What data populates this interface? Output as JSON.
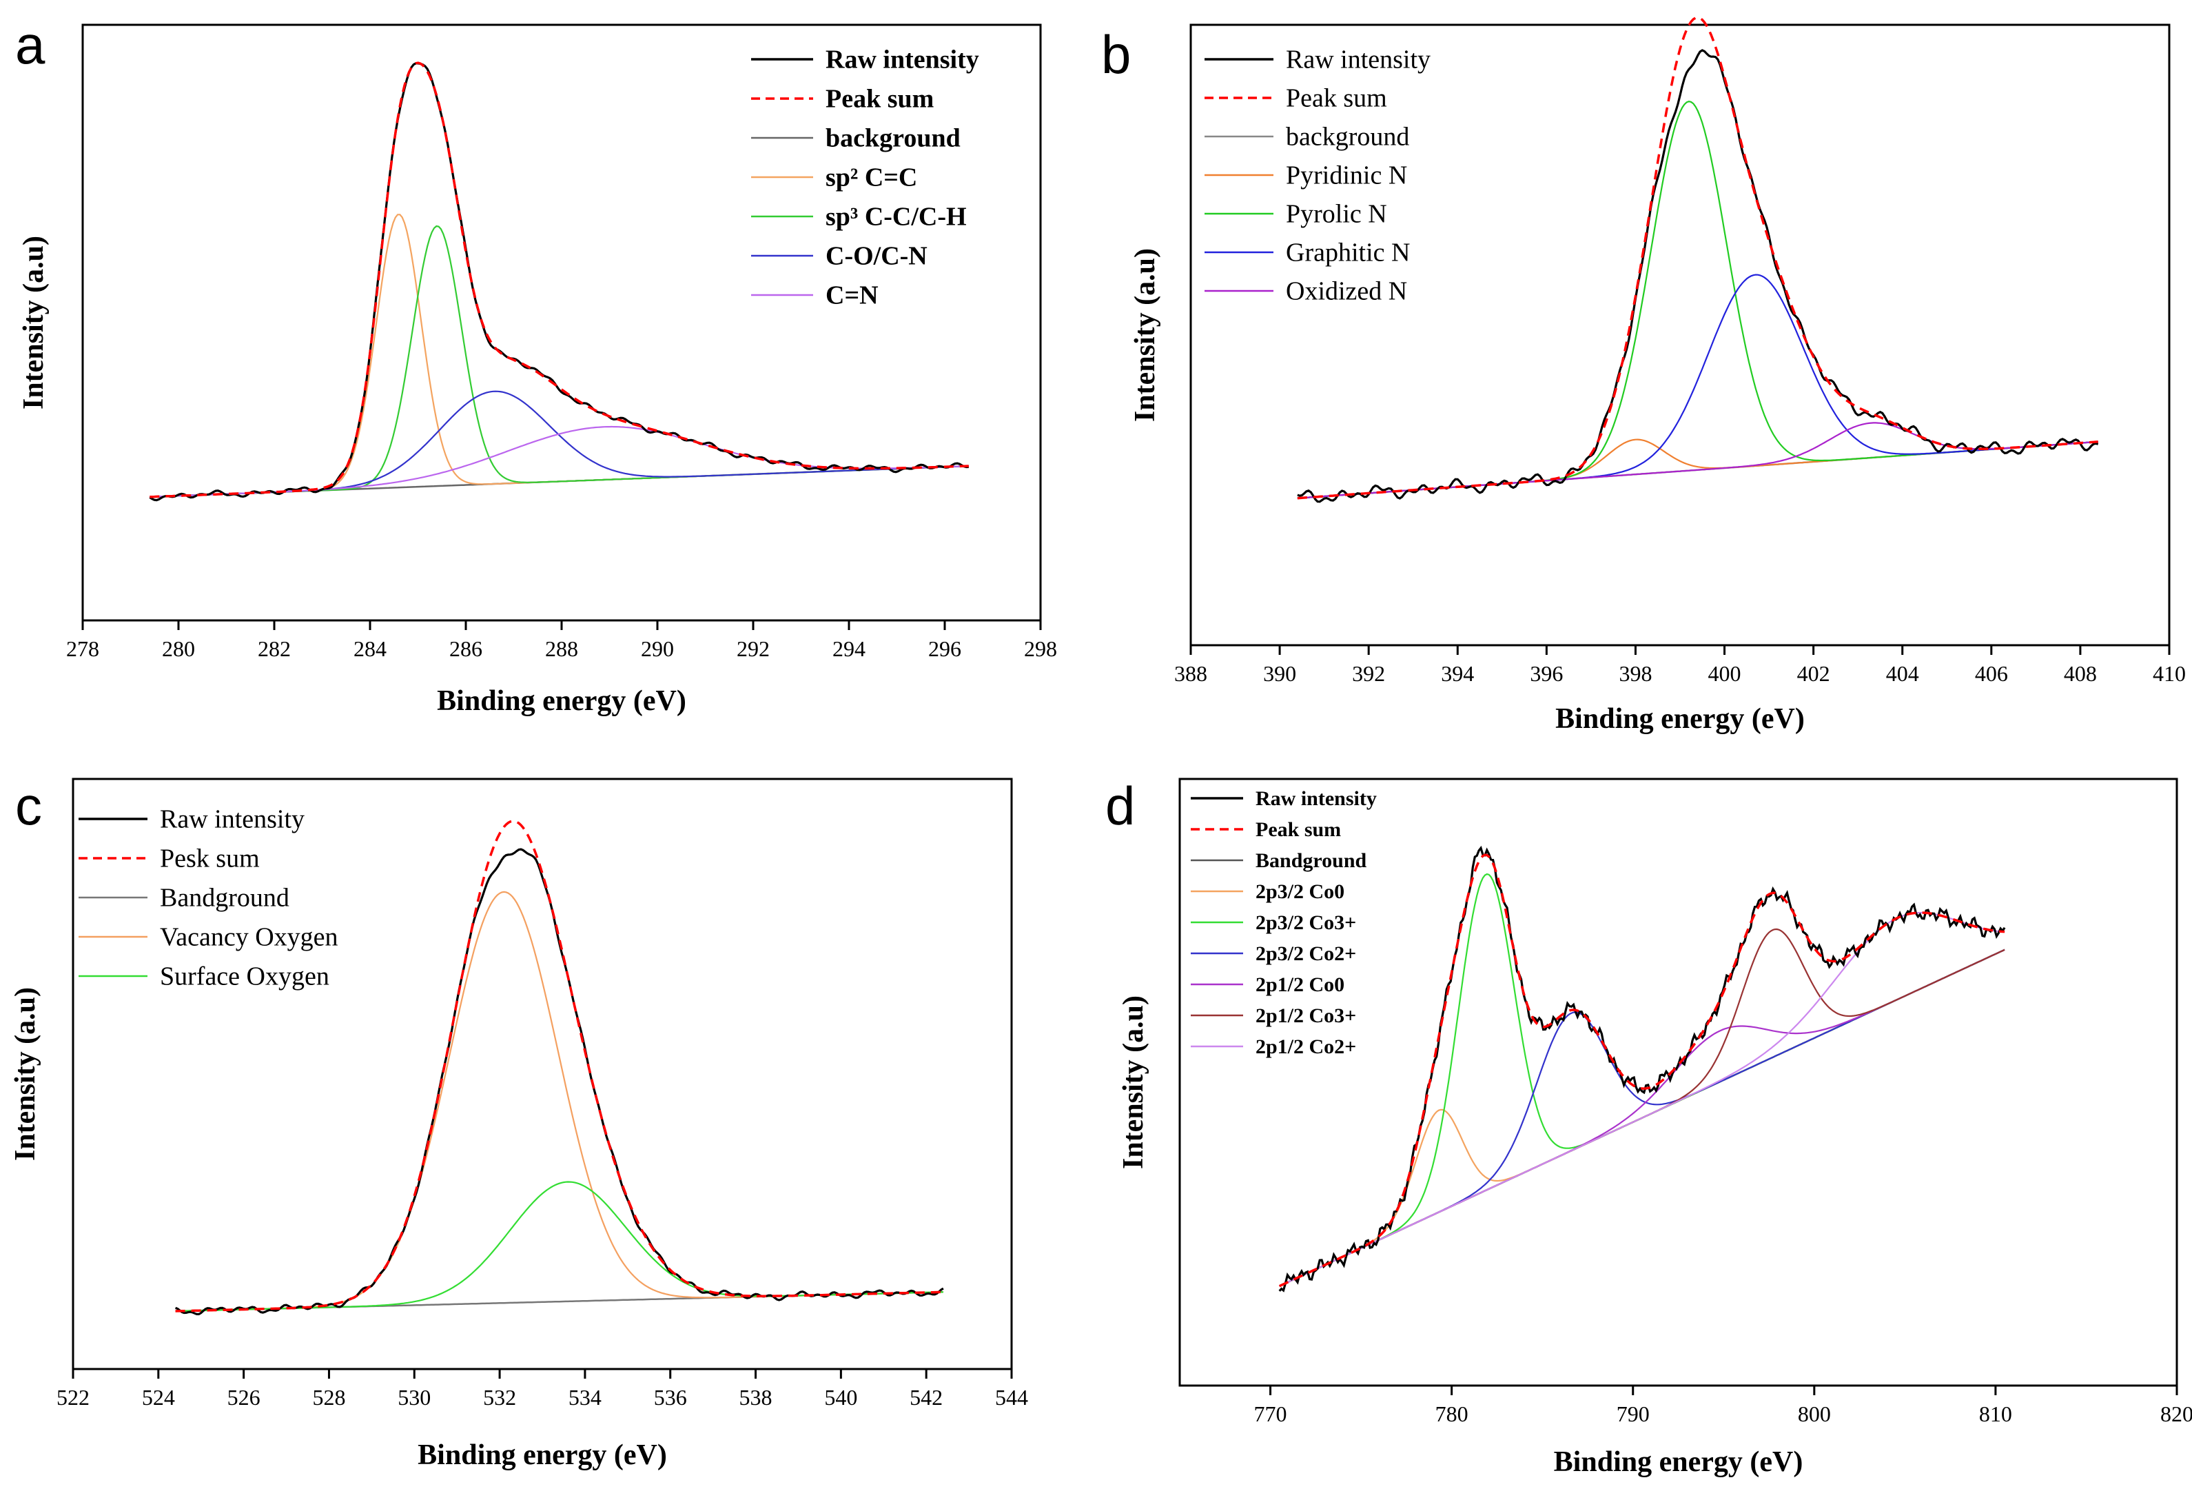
{
  "figure": {
    "panels": [
      {
        "letter": "a",
        "title": "",
        "xlabel": "Binding energy (eV)",
        "ylabel": "Intensity (a.u)",
        "xlim": [
          278,
          298
        ],
        "xticks": [
          "278",
          "280",
          "282",
          "284",
          "286",
          "288",
          "290",
          "292",
          "294",
          "296",
          "298"
        ],
        "legend": [
          {
            "label": "Raw intensity",
            "color": "#000000",
            "dash": false
          },
          {
            "label": "Peak sum",
            "color": "#ff0000",
            "dash": true
          },
          {
            "label": "background",
            "color": "#666666",
            "dash": false
          },
          {
            "label": "sp² C=C",
            "color": "#f4a460",
            "dash": false
          },
          {
            "label": "sp³ C-C/C-H",
            "color": "#33cc33",
            "dash": false
          },
          {
            "label": "C-O/C-N",
            "color": "#3333cc",
            "dash": false
          },
          {
            "label": "C=N",
            "color": "#bb66ee",
            "dash": false
          }
        ]
      },
      {
        "letter": "b",
        "title": "",
        "xlabel": "Binding energy (eV)",
        "ylabel": "Intensity (a.u)",
        "xlim": [
          388,
          410
        ],
        "xticks": [
          "388",
          "390",
          "392",
          "394",
          "396",
          "398",
          "400",
          "402",
          "404",
          "406",
          "408",
          "410"
        ],
        "legend": [
          {
            "label": "Raw intensity",
            "color": "#000000",
            "dash": false
          },
          {
            "label": "Peak sum",
            "color": "#ff0000",
            "dash": true
          },
          {
            "label": "background",
            "color": "#888888",
            "dash": false
          },
          {
            "label": "Pyridinic N",
            "color": "#f08030",
            "dash": false
          },
          {
            "label": "Pyrolic N",
            "color": "#22cc22",
            "dash": false
          },
          {
            "label": "Graphitic N",
            "color": "#2222dd",
            "dash": false
          },
          {
            "label": "Oxidized N",
            "color": "#aa22cc",
            "dash": false
          }
        ]
      },
      {
        "letter": "c",
        "title": "",
        "xlabel": "Binding energy (eV)",
        "ylabel": "Intensity (a.u)",
        "xlim": [
          522,
          544
        ],
        "xticks": [
          "522",
          "524",
          "526",
          "528",
          "530",
          "532",
          "534",
          "536",
          "538",
          "540",
          "542",
          "544"
        ],
        "legend": [
          {
            "label": "Raw intensity",
            "color": "#000000",
            "dash": false
          },
          {
            "label": "Pesk sum",
            "color": "#ff0000",
            "dash": true
          },
          {
            "label": "Bandground",
            "color": "#777777",
            "dash": false
          },
          {
            "label": "Vacancy Oxygen",
            "color": "#f4a060",
            "dash": false
          },
          {
            "label": "Surface Oxygen",
            "color": "#33dd33",
            "dash": false
          }
        ]
      },
      {
        "letter": "d",
        "title": "",
        "xlabel": "Binding energy (eV)",
        "ylabel": "Intensity (a.u)",
        "xlim": [
          765,
          820
        ],
        "xticks": [
          "770",
          "780",
          "790",
          "800",
          "810",
          "820"
        ],
        "legend": [
          {
            "label": "Raw intensity",
            "color": "#000000",
            "dash": false
          },
          {
            "label": "Peak sum",
            "color": "#ff0000",
            "dash": true
          },
          {
            "label": "Bandground",
            "color": "#555555",
            "dash": false
          },
          {
            "label": "2p3/2 Co0",
            "color": "#f4a460",
            "dash": false
          },
          {
            "label": "2p3/2 Co3+",
            "color": "#33dd33",
            "dash": false
          },
          {
            "label": "2p3/2 Co2+",
            "color": "#3333cc",
            "dash": false
          },
          {
            "label": "2p1/2 Co0",
            "color": "#aa33cc",
            "dash": false
          },
          {
            "label": "2p1/2 Co3+",
            "color": "#993333",
            "dash": false
          },
          {
            "label": "2p1/2 Co2+",
            "color": "#cc88ee",
            "dash": false
          }
        ]
      }
    ]
  },
  "chart_data": [
    {
      "type": "line",
      "title": "",
      "xlabel": "Binding energy (eV)",
      "ylabel": "Intensity (a.u)",
      "xlim": [
        278,
        298
      ],
      "ylim": [
        0,
        100
      ],
      "x_range": [
        279.4,
        296.5
      ],
      "background": {
        "start": 1,
        "end": 8
      },
      "components": [
        {
          "name": "sp² C=C",
          "center": 284.6,
          "height": 62,
          "fwhm": 1.1
        },
        {
          "name": "sp³ C-C/C-H",
          "center": 285.4,
          "height": 59,
          "fwhm": 1.2
        },
        {
          "name": "C-O/C-N",
          "center": 286.6,
          "height": 21,
          "fwhm": 2.7
        },
        {
          "name": "C=N",
          "center": 288.9,
          "height": 12,
          "fwhm": 4.8
        }
      ],
      "raw_peak": {
        "x": 284.9,
        "y": 99
      },
      "series": [
        {
          "name": "Raw intensity"
        },
        {
          "name": "Peak sum"
        },
        {
          "name": "background"
        },
        {
          "name": "sp² C=C"
        },
        {
          "name": "sp³ C-C/C-H"
        },
        {
          "name": "C-O/C-N"
        },
        {
          "name": "C=N"
        }
      ]
    },
    {
      "type": "line",
      "title": "",
      "xlabel": "Binding energy (eV)",
      "ylabel": "Intensity (a.u)",
      "xlim": [
        388,
        410
      ],
      "ylim": [
        0,
        100
      ],
      "x_range": [
        390.4,
        408.4
      ],
      "background": {
        "start": 1,
        "end": 14
      },
      "components": [
        {
          "name": "Pyridinic N",
          "center": 398.0,
          "height": 8,
          "fwhm": 1.5
        },
        {
          "name": "Pyrolic N",
          "center": 399.2,
          "height": 85,
          "fwhm": 2.0
        },
        {
          "name": "Graphitic N",
          "center": 400.7,
          "height": 44,
          "fwhm": 2.5
        },
        {
          "name": "Oxidized N",
          "center": 403.3,
          "height": 8,
          "fwhm": 2.2
        }
      ],
      "raw_peak": {
        "x": 399.1,
        "y": 96
      },
      "series": [
        {
          "name": "Raw intensity"
        },
        {
          "name": "Peak sum"
        },
        {
          "name": "background"
        },
        {
          "name": "Pyridinic N"
        },
        {
          "name": "Pyrolic N"
        },
        {
          "name": "Graphitic N"
        },
        {
          "name": "Oxidized N"
        }
      ]
    },
    {
      "type": "line",
      "title": "",
      "xlabel": "Binding energy (eV)",
      "ylabel": "Intensity (a.u)",
      "xlim": [
        522,
        544
      ],
      "ylim": [
        0,
        100
      ],
      "x_range": [
        524.4,
        542.4
      ],
      "background": {
        "start": 1,
        "end": 5
      },
      "components": [
        {
          "name": "Vacancy Oxygen",
          "center": 532.1,
          "height": 86,
          "fwhm": 3.0
        },
        {
          "name": "Surface Oxygen",
          "center": 533.6,
          "height": 25,
          "fwhm": 3.2
        }
      ],
      "raw_peak": {
        "x": 532.2,
        "y": 96
      },
      "series": [
        {
          "name": "Raw intensity"
        },
        {
          "name": "Pesk sum"
        },
        {
          "name": "Bandground"
        },
        {
          "name": "Vacancy Oxygen"
        },
        {
          "name": "Surface Oxygen"
        }
      ]
    },
    {
      "type": "line",
      "title": "",
      "xlabel": "Binding energy (eV)",
      "ylabel": "Intensity (a.u)",
      "xlim": [
        765,
        820
      ],
      "ylim": [
        0,
        100
      ],
      "x_range": [
        770.5,
        810.5
      ],
      "background": {
        "start": 10,
        "end": 76
      },
      "components": [
        {
          "name": "2p3/2 Co0",
          "center": 779.3,
          "height": 20,
          "fwhm": 3.0
        },
        {
          "name": "2p3/2 Co3+",
          "center": 781.9,
          "height": 62,
          "fwhm": 3.6
        },
        {
          "name": "2p3/2 Co2+",
          "center": 786.6,
          "height": 27,
          "fwhm": 4.5
        },
        {
          "name": "2p1/2 Co0",
          "center": 794.8,
          "height": 10,
          "fwhm": 6.0
        },
        {
          "name": "2p1/2 Co3+",
          "center": 797.7,
          "height": 25,
          "fwhm": 4.0
        },
        {
          "name": "2p1/2 Co2+",
          "center": 804.6,
          "height": 16,
          "fwhm": 8.0
        }
      ],
      "raw_peak": {
        "x": 781.4,
        "y": 94
      },
      "series": [
        {
          "name": "Raw intensity"
        },
        {
          "name": "Peak sum"
        },
        {
          "name": "Bandground"
        },
        {
          "name": "2p3/2 Co0"
        },
        {
          "name": "2p3/2 Co3+"
        },
        {
          "name": "2p3/2 Co2+"
        },
        {
          "name": "2p1/2 Co0"
        },
        {
          "name": "2p1/2 Co3+"
        },
        {
          "name": "2p1/2 Co2+"
        }
      ]
    }
  ]
}
